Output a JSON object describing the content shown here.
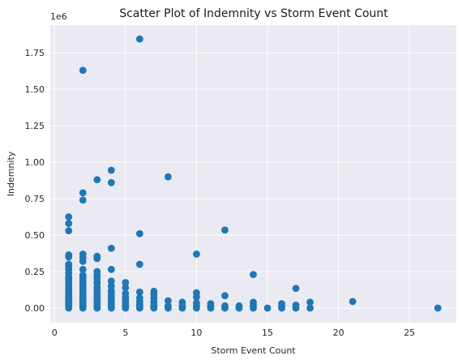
{
  "chart_data": {
    "type": "scatter",
    "title": "Scatter Plot of Indemnity vs Storm Event Count",
    "xlabel": "Storm Event Count",
    "ylabel": "Indemnity",
    "y_offset_label": "1e6",
    "xlim": [
      -0.3,
      28.3
    ],
    "ylim": [
      -100000,
      1940000
    ],
    "x_ticks": [
      0,
      5,
      10,
      15,
      20,
      25
    ],
    "x_tick_labels": [
      "0",
      "5",
      "10",
      "15",
      "20",
      "25"
    ],
    "y_ticks": [
      0,
      250000,
      500000,
      750000,
      1000000,
      1250000,
      1500000,
      1750000
    ],
    "y_tick_labels": [
      "0.00",
      "0.25",
      "0.50",
      "0.75",
      "1.00",
      "1.25",
      "1.50",
      "1.75"
    ],
    "grid": true,
    "background": "#eaeaf2",
    "marker_color": "#1f77b4",
    "points": [
      [
        1,
        0
      ],
      [
        1,
        8000
      ],
      [
        1,
        15000
      ],
      [
        1,
        25000
      ],
      [
        1,
        35000
      ],
      [
        1,
        45000
      ],
      [
        1,
        55000
      ],
      [
        1,
        65000
      ],
      [
        1,
        75000
      ],
      [
        1,
        85000
      ],
      [
        1,
        95000
      ],
      [
        1,
        110000
      ],
      [
        1,
        125000
      ],
      [
        1,
        140000
      ],
      [
        1,
        160000
      ],
      [
        1,
        180000
      ],
      [
        1,
        200000
      ],
      [
        1,
        215000
      ],
      [
        1,
        240000
      ],
      [
        1,
        265000
      ],
      [
        1,
        285000
      ],
      [
        1,
        300000
      ],
      [
        1,
        350000
      ],
      [
        1,
        365000
      ],
      [
        1,
        530000
      ],
      [
        1,
        580000
      ],
      [
        1,
        625000
      ],
      [
        2,
        0
      ],
      [
        2,
        10000
      ],
      [
        2,
        20000
      ],
      [
        2,
        30000
      ],
      [
        2,
        40000
      ],
      [
        2,
        50000
      ],
      [
        2,
        60000
      ],
      [
        2,
        70000
      ],
      [
        2,
        80000
      ],
      [
        2,
        95000
      ],
      [
        2,
        110000
      ],
      [
        2,
        125000
      ],
      [
        2,
        140000
      ],
      [
        2,
        155000
      ],
      [
        2,
        170000
      ],
      [
        2,
        190000
      ],
      [
        2,
        210000
      ],
      [
        2,
        225000
      ],
      [
        2,
        265000
      ],
      [
        2,
        320000
      ],
      [
        2,
        345000
      ],
      [
        2,
        370000
      ],
      [
        2,
        740000
      ],
      [
        2,
        790000
      ],
      [
        2,
        1630000
      ],
      [
        3,
        0
      ],
      [
        3,
        10000
      ],
      [
        3,
        20000
      ],
      [
        3,
        35000
      ],
      [
        3,
        50000
      ],
      [
        3,
        65000
      ],
      [
        3,
        80000
      ],
      [
        3,
        100000
      ],
      [
        3,
        120000
      ],
      [
        3,
        140000
      ],
      [
        3,
        165000
      ],
      [
        3,
        180000
      ],
      [
        3,
        205000
      ],
      [
        3,
        225000
      ],
      [
        3,
        250000
      ],
      [
        3,
        340000
      ],
      [
        3,
        355000
      ],
      [
        3,
        880000
      ],
      [
        4,
        0
      ],
      [
        4,
        10000
      ],
      [
        4,
        25000
      ],
      [
        4,
        40000
      ],
      [
        4,
        60000
      ],
      [
        4,
        80000
      ],
      [
        4,
        100000
      ],
      [
        4,
        120000
      ],
      [
        4,
        150000
      ],
      [
        4,
        185000
      ],
      [
        4,
        265000
      ],
      [
        4,
        410000
      ],
      [
        4,
        860000
      ],
      [
        4,
        945000
      ],
      [
        5,
        0
      ],
      [
        5,
        8000
      ],
      [
        5,
        20000
      ],
      [
        5,
        35000
      ],
      [
        5,
        55000
      ],
      [
        5,
        75000
      ],
      [
        5,
        100000
      ],
      [
        5,
        140000
      ],
      [
        5,
        175000
      ],
      [
        6,
        0
      ],
      [
        6,
        10000
      ],
      [
        6,
        25000
      ],
      [
        6,
        45000
      ],
      [
        6,
        70000
      ],
      [
        6,
        110000
      ],
      [
        6,
        300000
      ],
      [
        6,
        510000
      ],
      [
        6,
        1845000
      ],
      [
        7,
        0
      ],
      [
        7,
        10000
      ],
      [
        7,
        25000
      ],
      [
        7,
        45000
      ],
      [
        7,
        70000
      ],
      [
        7,
        95000
      ],
      [
        7,
        115000
      ],
      [
        8,
        0
      ],
      [
        8,
        15000
      ],
      [
        8,
        50000
      ],
      [
        8,
        900000
      ],
      [
        9,
        0
      ],
      [
        9,
        15000
      ],
      [
        9,
        40000
      ],
      [
        10,
        0
      ],
      [
        10,
        15000
      ],
      [
        10,
        35000
      ],
      [
        10,
        75000
      ],
      [
        10,
        105000
      ],
      [
        10,
        370000
      ],
      [
        11,
        0
      ],
      [
        11,
        15000
      ],
      [
        11,
        30000
      ],
      [
        12,
        0
      ],
      [
        12,
        15000
      ],
      [
        12,
        85000
      ],
      [
        12,
        535000
      ],
      [
        13,
        0
      ],
      [
        13,
        15000
      ],
      [
        14,
        0
      ],
      [
        14,
        20000
      ],
      [
        14,
        40000
      ],
      [
        14,
        230000
      ],
      [
        15,
        0
      ],
      [
        16,
        0
      ],
      [
        16,
        15000
      ],
      [
        16,
        30000
      ],
      [
        17,
        0
      ],
      [
        17,
        20000
      ],
      [
        17,
        135000
      ],
      [
        18,
        0
      ],
      [
        18,
        40000
      ],
      [
        21,
        45000
      ],
      [
        27,
        0
      ]
    ]
  }
}
